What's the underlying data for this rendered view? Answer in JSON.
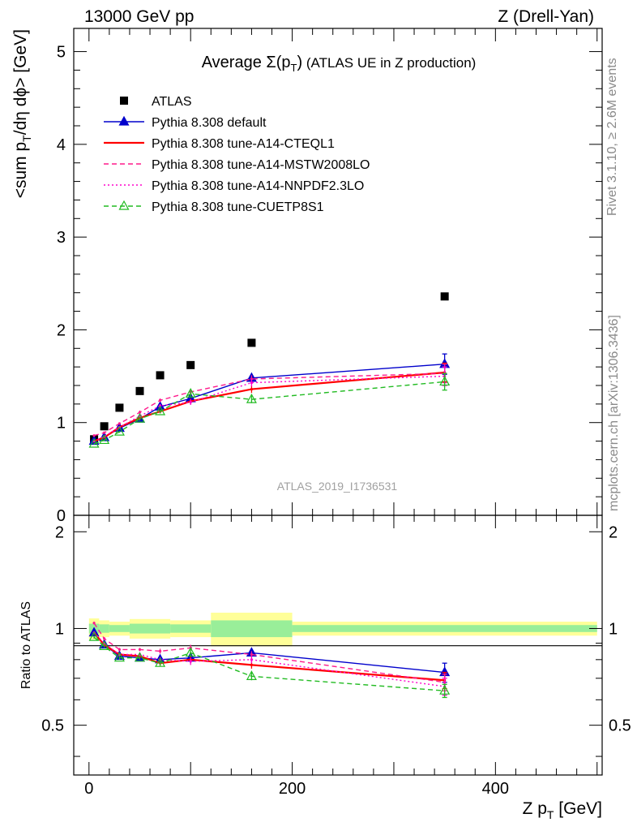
{
  "header": {
    "left": "13000 GeV pp",
    "right": "Z (Drell-Yan)"
  },
  "side_text": {
    "rivet": "Rivet 3.1.10, ≥ 2.6M events",
    "mcplots": "mcplots.cern.ch [arXiv:1306.3436]"
  },
  "chart_data": [
    {
      "type": "scatter",
      "title_parts": {
        "main": "Average Σ(p",
        "sub": "T",
        "close": ")",
        "rest": " (ATLAS UE in Z production)"
      },
      "ylabel_parts": {
        "main": "<sum p",
        "sub": "T",
        "rest": "/dη dϕ> [GeV]"
      },
      "analysis_label": "ATLAS_2019_I1736531",
      "xlim": [
        -15,
        505
      ],
      "ylim": [
        0,
        5.25
      ],
      "yticks": [
        0,
        1,
        2,
        3,
        4,
        5
      ],
      "ytick_labels": [
        "0",
        "1",
        "2",
        "3",
        "4",
        "5"
      ],
      "legend_position": "top-left",
      "x": [
        5,
        15,
        30,
        50,
        70,
        100,
        160,
        350
      ],
      "series": [
        {
          "name": "ATLAS",
          "color": "#000000",
          "marker": "square",
          "line": "none",
          "values": [
            0.82,
            0.96,
            1.16,
            1.34,
            1.51,
            1.62,
            1.86,
            2.36
          ]
        },
        {
          "name": "Pythia 8.308 default",
          "color": "#0000cc",
          "marker": "triangle-filled",
          "line": "solid",
          "values": [
            0.8,
            0.84,
            0.94,
            1.04,
            1.17,
            1.26,
            1.48,
            1.63
          ],
          "yerr": [
            0.01,
            0.01,
            0.01,
            0.02,
            0.02,
            0.03,
            0.04,
            0.11
          ]
        },
        {
          "name": "Pythia 8.308 tune-A14-CTEQL1",
          "color": "#ff0000",
          "marker": "none",
          "line": "solid",
          "values": [
            0.8,
            0.84,
            0.95,
            1.05,
            1.12,
            1.23,
            1.36,
            1.54
          ],
          "yerr": [
            0.01,
            0.01,
            0.01,
            0.02,
            0.02,
            0.03,
            0.04,
            0.1
          ]
        },
        {
          "name": "Pythia 8.308 tune-A14-MSTW2008LO",
          "color": "#ff1a8c",
          "marker": "none",
          "line": "dashed",
          "values": [
            0.86,
            0.89,
            0.99,
            1.11,
            1.24,
            1.33,
            1.47,
            1.53
          ],
          "yerr": [
            0.01,
            0.01,
            0.01,
            0.02,
            0.02,
            0.03,
            0.04,
            0.1
          ]
        },
        {
          "name": "Pythia 8.308 tune-A14-NNPDF2.3LO",
          "color": "#ff00cc",
          "marker": "none",
          "line": "dotted",
          "values": [
            0.8,
            0.85,
            0.95,
            1.07,
            1.18,
            1.22,
            1.43,
            1.5
          ],
          "yerr": [
            0.01,
            0.01,
            0.01,
            0.02,
            0.02,
            0.03,
            0.04,
            0.1
          ]
        },
        {
          "name": "Pythia 8.308 tune-CUETP8S1",
          "color": "#22bb22",
          "marker": "triangle-open",
          "line": "dashed",
          "values": [
            0.77,
            0.81,
            0.9,
            1.04,
            1.12,
            1.31,
            1.25,
            1.44
          ],
          "yerr": [
            0.01,
            0.01,
            0.01,
            0.02,
            0.02,
            0.03,
            0.04,
            0.09
          ]
        }
      ]
    },
    {
      "type": "scatter",
      "ylabel": "Ratio to ATLAS",
      "xlabel_parts": {
        "main": "Z p",
        "sub": "T",
        "rest": " [GeV]"
      },
      "xlim": [
        -15,
        505
      ],
      "ylim": [
        0.35,
        2.25
      ],
      "yticks": [
        0.5,
        1,
        2
      ],
      "ytick_labels": [
        "0.5",
        "1",
        "2"
      ],
      "xticks": [
        0,
        200,
        400
      ],
      "xtick_labels": [
        "0",
        "200",
        "400"
      ],
      "x": [
        5,
        15,
        30,
        50,
        70,
        100,
        160,
        350
      ],
      "uncertainty_bands": [
        {
          "x0": 0,
          "x1": 10,
          "inner": 0.035,
          "outer": 0.075
        },
        {
          "x0": 10,
          "x1": 20,
          "inner": 0.03,
          "outer": 0.06
        },
        {
          "x0": 20,
          "x1": 40,
          "inner": 0.025,
          "outer": 0.05
        },
        {
          "x0": 40,
          "x1": 80,
          "inner": 0.035,
          "outer": 0.07
        },
        {
          "x0": 80,
          "x1": 120,
          "inner": 0.03,
          "outer": 0.06
        },
        {
          "x0": 120,
          "x1": 200,
          "inner": 0.06,
          "outer": 0.12
        },
        {
          "x0": 200,
          "x1": 500,
          "inner": 0.025,
          "outer": 0.05
        }
      ],
      "series": [
        {
          "name": "Pythia 8.308 default",
          "color": "#0000cc",
          "marker": "triangle-filled",
          "line": "solid",
          "values": [
            0.97,
            0.89,
            0.82,
            0.81,
            0.8,
            0.81,
            0.84,
            0.73
          ],
          "yerr": [
            0.01,
            0.01,
            0.01,
            0.01,
            0.015,
            0.02,
            0.02,
            0.05
          ]
        },
        {
          "name": "Pythia 8.308 tune-A14-CTEQL1",
          "color": "#ff0000",
          "marker": "none",
          "line": "solid",
          "values": [
            0.97,
            0.89,
            0.83,
            0.82,
            0.78,
            0.8,
            0.77,
            0.69
          ],
          "yerr": [
            0.01,
            0.01,
            0.01,
            0.01,
            0.015,
            0.02,
            0.02,
            0.04
          ]
        },
        {
          "name": "Pythia 8.308 tune-A14-MSTW2008LO",
          "color": "#ff1a8c",
          "marker": "none",
          "line": "dashed",
          "values": [
            1.04,
            0.93,
            0.86,
            0.86,
            0.85,
            0.87,
            0.83,
            0.68
          ],
          "yerr": [
            0.01,
            0.01,
            0.01,
            0.01,
            0.015,
            0.02,
            0.02,
            0.04
          ]
        },
        {
          "name": "Pythia 8.308 tune-A14-NNPDF2.3LO",
          "color": "#ff00cc",
          "marker": "none",
          "line": "dotted",
          "values": [
            0.97,
            0.9,
            0.83,
            0.83,
            0.8,
            0.79,
            0.8,
            0.66
          ],
          "yerr": [
            0.01,
            0.01,
            0.01,
            0.01,
            0.015,
            0.02,
            0.02,
            0.04
          ]
        },
        {
          "name": "Pythia 8.308 tune-CUETP8S1",
          "color": "#22bb22",
          "marker": "triangle-open",
          "line": "dashed",
          "values": [
            0.94,
            0.88,
            0.81,
            0.81,
            0.78,
            0.84,
            0.71,
            0.64
          ],
          "yerr": [
            0.01,
            0.01,
            0.01,
            0.01,
            0.015,
            0.02,
            0.02,
            0.03
          ]
        }
      ]
    }
  ]
}
